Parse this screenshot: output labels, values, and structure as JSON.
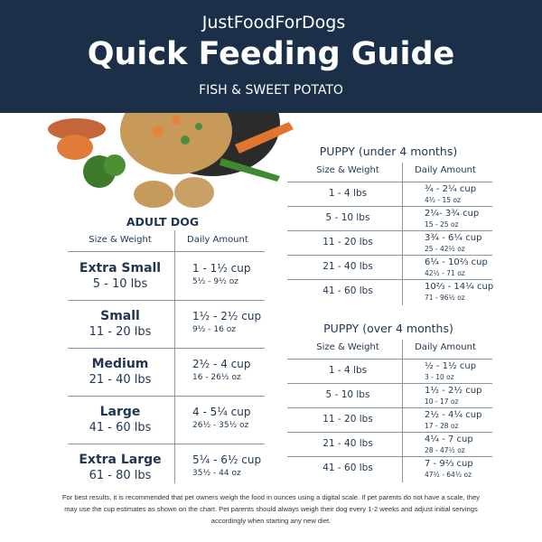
{
  "header": {
    "brand": "JustFoodForDogs",
    "title": "Quick Feeding Guide",
    "subtitle": "FISH & SWEET POTATO"
  },
  "adult": {
    "title": "ADULT DOG",
    "columns": [
      "Size & Weight",
      "Daily Amount"
    ],
    "rows": [
      {
        "size": "Extra Small",
        "weight": "5 - 10 lbs",
        "cup": "1 - 1½ cup",
        "oz": "5½ - 9½ oz"
      },
      {
        "size": "Small",
        "weight": "11 - 20 lbs",
        "cup": "1½ - 2½ cup",
        "oz": "9½ - 16 oz"
      },
      {
        "size": "Medium",
        "weight": "21 - 40 lbs",
        "cup": "2½ - 4 cup",
        "oz": "16 - 26½ oz"
      },
      {
        "size": "Large",
        "weight": "41 - 60 lbs",
        "cup": "4 - 5¼ cup",
        "oz": "26½ - 35½ oz"
      },
      {
        "size": "Extra Large",
        "weight": "61 - 80 lbs",
        "cup": "5¼ - 6½ cup",
        "oz": "35½ - 44 oz"
      }
    ]
  },
  "puppy_young": {
    "title": "PUPPY (under 4 months)",
    "columns": [
      "Size & Weight",
      "Daily Amount"
    ],
    "rows": [
      {
        "weight": "1 - 4 lbs",
        "cup": "¾ - 2¼ cup",
        "oz": "4½ - 15 oz"
      },
      {
        "weight": "5 - 10 lbs",
        "cup": "2¼- 3¾ cup",
        "oz": "15 - 25 oz"
      },
      {
        "weight": "11 - 20 lbs",
        "cup": "3¾ - 6¼ cup",
        "oz": "25 - 42½ oz"
      },
      {
        "weight": "21 - 40 lbs",
        "cup": "6¼ - 10⅔ cup",
        "oz": "42½ - 71 oz"
      },
      {
        "weight": "41 - 60 lbs",
        "cup": "10⅔ - 14¼ cup",
        "oz": "71 - 96½ oz"
      }
    ]
  },
  "puppy_older": {
    "title": "PUPPY (over 4 months)",
    "columns": [
      "Size & Weight",
      "Daily Amount"
    ],
    "rows": [
      {
        "weight": "1 - 4 lbs",
        "cup": "½ - 1½ cup",
        "oz": "3 - 10 oz"
      },
      {
        "weight": "5 - 10 lbs",
        "cup": "1½ - 2½ cup",
        "oz": "10 - 17 oz"
      },
      {
        "weight": "11 - 20 lbs",
        "cup": "2½ - 4¼ cup",
        "oz": "17 - 28 oz"
      },
      {
        "weight": "21 - 40 lbs",
        "cup": "4¼ - 7 cup",
        "oz": "28 - 47½ oz"
      },
      {
        "weight": "41 - 60 lbs",
        "cup": "7 - 9⅔ cup",
        "oz": "47½ - 64½ oz"
      }
    ]
  },
  "footnote": "For best results, it is recommended that pet owners weigh the food in ounces using a digital scale. If pet parents do not have a scale, they may use the cup estimates as shown on the chart. Pet parents should always weigh their dog every 1-2 weeks and adjust initial servings accordingly when starting any new diet."
}
